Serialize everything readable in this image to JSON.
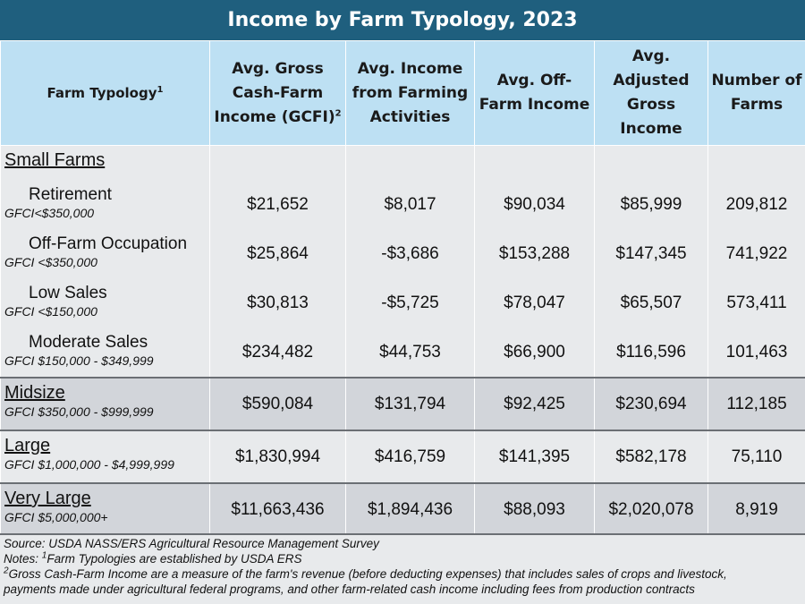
{
  "title": "Income by Farm Typology, 2023",
  "headers": {
    "typology": "Farm Typology",
    "typology_sup": "1",
    "gcfi": "Avg. Gross Cash-Farm Income (GCFI)",
    "gcfi_sup": "2",
    "farming": "Avg. Income from Farming Activities",
    "offfarm": "Avg. Off-Farm Income",
    "agi": "Avg. Adjusted Gross Income",
    "farms": "Number of Farms"
  },
  "small_farms": {
    "title": "Small Farms",
    "rows": [
      {
        "name": "Retirement",
        "range": "GFCI<$350,000",
        "gcfi": "$21,652",
        "farming": "$8,017",
        "offfarm": "$90,034",
        "agi": "$85,999",
        "farms": "209,812"
      },
      {
        "name": "Off-Farm Occupation",
        "range": "GFCI <$350,000",
        "gcfi": "$25,864",
        "farming": "-$3,686",
        "offfarm": "$153,288",
        "agi": "$147,345",
        "farms": "741,922"
      },
      {
        "name": "Low Sales",
        "range": "GFCI <$150,000",
        "gcfi": "$30,813",
        "farming": "-$5,725",
        "offfarm": "$78,047",
        "agi": "$65,507",
        "farms": "573,411"
      },
      {
        "name": "Moderate Sales",
        "range": "GFCI $150,000 - $349,999",
        "gcfi": "$234,482",
        "farming": "$44,753",
        "offfarm": "$66,900",
        "agi": "$116,596",
        "farms": "101,463"
      }
    ]
  },
  "groups": [
    {
      "name": "Midsize",
      "range": "GFCI $350,000 - $999,999",
      "gcfi": "$590,084",
      "farming": "$131,794",
      "offfarm": "$92,425",
      "agi": "$230,694",
      "farms": "112,185"
    },
    {
      "name": "Large",
      "range": "GFCI $1,000,000 - $4,999,999",
      "gcfi": "$1,830,994",
      "farming": "$416,759",
      "offfarm": "$141,395",
      "agi": "$582,178",
      "farms": "75,110"
    },
    {
      "name": "Very Large",
      "range": "GFCI $5,000,000+",
      "gcfi": "$11,663,436",
      "farming": "$1,894,436",
      "offfarm": "$88,093",
      "agi": "$2,020,078",
      "farms": "8,919"
    }
  ],
  "notes": {
    "source": "Source: USDA NASS/ERS Agricultural Resource Management Survey",
    "notes_prefix": "Notes: ",
    "note1_sup": "1",
    "note1": "Farm Typologies are established by USDA ERS",
    "note2_sup": "2",
    "note2_line1": "Gross Cash-Farm Income are a measure of the farm's revenue (before deducting expenses) that includes sales of crops and livestock,",
    "note2_line2": "payments made under agricultural federal programs, and other farm-related cash income including fees from production contracts"
  },
  "colors": {
    "title_bar": "#1f5f7e",
    "header_bg": "#bde0f3",
    "row_light": "#e8eaec",
    "row_dark": "#d2d5da"
  }
}
